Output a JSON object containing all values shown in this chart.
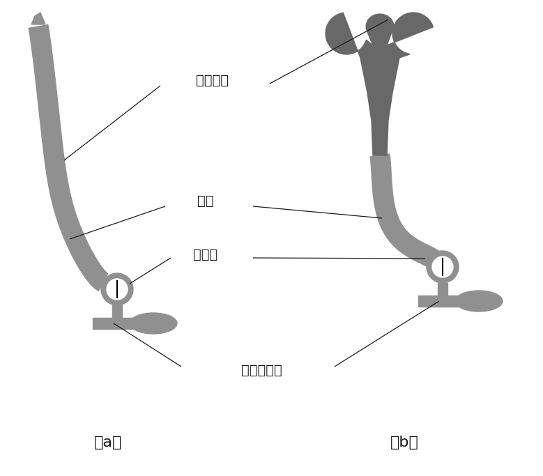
{
  "bg_color": "#ffffff",
  "shape_color": "#909090",
  "shape_color_dark": "#686868",
  "line_color": "#1a1a1a",
  "labels": {
    "gong_xing_qi_nang": "宫型气囊",
    "dao_guan": "导管",
    "qi_ya_biao": "气压表",
    "dan_xiang_chong_qi_fa": "单相充气阀",
    "a": "（a）",
    "b": "（b）"
  },
  "figsize": [
    7.79,
    6.83
  ],
  "dpi": 100
}
